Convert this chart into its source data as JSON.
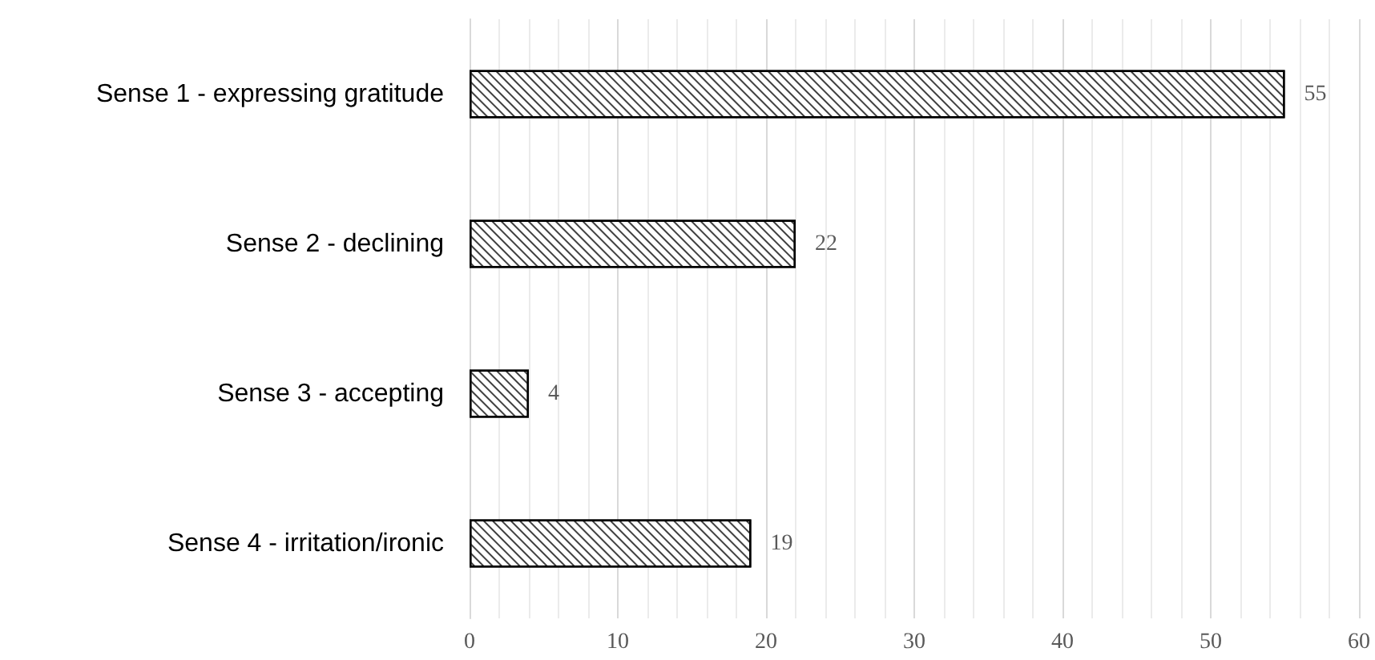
{
  "chart_data": {
    "type": "bar",
    "orientation": "horizontal",
    "categories": [
      "Sense 1 - expressing gratitude",
      "Sense 2 - declining",
      "Sense 3 - accepting",
      "Sense 4 - irritation/ironic"
    ],
    "values": [
      55,
      22,
      4,
      19
    ],
    "color": "#ffffff",
    "xlim": [
      0,
      60
    ],
    "xticks": [
      0,
      10,
      20,
      30,
      40,
      50,
      60
    ],
    "grid": "x",
    "data_labels": true
  }
}
